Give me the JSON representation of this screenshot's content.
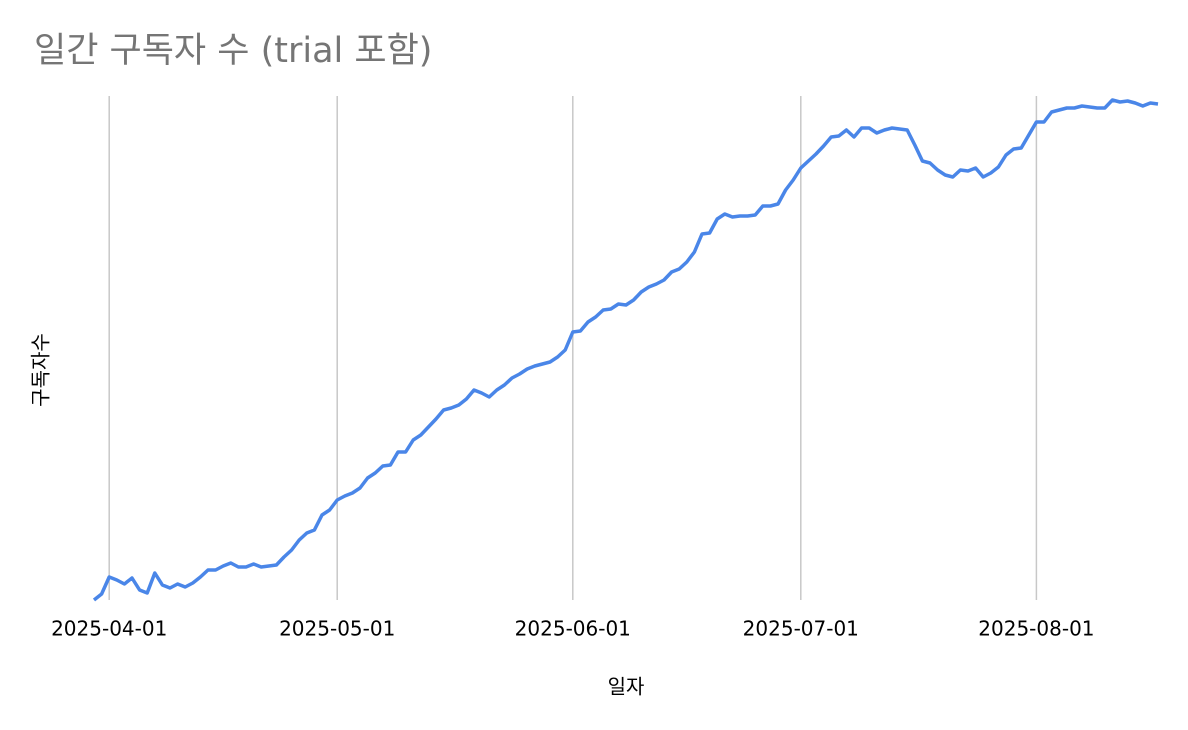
{
  "chart_data": {
    "type": "line",
    "title": "일간 구독자 수 (trial 포함)",
    "x_label": "일자",
    "y_label": "구독자수",
    "x": [
      "2025-03-30",
      "2025-03-31",
      "2025-04-01",
      "2025-04-02",
      "2025-04-03",
      "2025-04-04",
      "2025-04-05",
      "2025-04-06",
      "2025-04-07",
      "2025-04-08",
      "2025-04-09",
      "2025-04-10",
      "2025-04-11",
      "2025-04-12",
      "2025-04-13",
      "2025-04-14",
      "2025-04-15",
      "2025-04-16",
      "2025-04-17",
      "2025-04-18",
      "2025-04-19",
      "2025-04-20",
      "2025-04-21",
      "2025-04-22",
      "2025-04-23",
      "2025-04-24",
      "2025-04-25",
      "2025-04-26",
      "2025-04-27",
      "2025-04-28",
      "2025-04-29",
      "2025-04-30",
      "2025-05-01",
      "2025-05-02",
      "2025-05-03",
      "2025-05-04",
      "2025-05-05",
      "2025-05-06",
      "2025-05-07",
      "2025-05-08",
      "2025-05-09",
      "2025-05-10",
      "2025-05-11",
      "2025-05-12",
      "2025-05-13",
      "2025-05-14",
      "2025-05-15",
      "2025-05-16",
      "2025-05-17",
      "2025-05-18",
      "2025-05-19",
      "2025-05-20",
      "2025-05-21",
      "2025-05-22",
      "2025-05-23",
      "2025-05-24",
      "2025-05-25",
      "2025-05-26",
      "2025-05-27",
      "2025-05-28",
      "2025-05-29",
      "2025-05-30",
      "2025-05-31",
      "2025-06-01",
      "2025-06-02",
      "2025-06-03",
      "2025-06-04",
      "2025-06-05",
      "2025-06-06",
      "2025-06-07",
      "2025-06-08",
      "2025-06-09",
      "2025-06-10",
      "2025-06-11",
      "2025-06-12",
      "2025-06-13",
      "2025-06-14",
      "2025-06-15",
      "2025-06-16",
      "2025-06-17",
      "2025-06-18",
      "2025-06-19",
      "2025-06-20",
      "2025-06-21",
      "2025-06-22",
      "2025-06-23",
      "2025-06-24",
      "2025-06-25",
      "2025-06-26",
      "2025-06-27",
      "2025-06-28",
      "2025-06-29",
      "2025-06-30",
      "2025-07-01",
      "2025-07-02",
      "2025-07-03",
      "2025-07-04",
      "2025-07-05",
      "2025-07-06",
      "2025-07-07",
      "2025-07-08",
      "2025-07-09",
      "2025-07-10",
      "2025-07-11",
      "2025-07-12",
      "2025-07-13",
      "2025-07-14",
      "2025-07-15",
      "2025-07-16",
      "2025-07-17",
      "2025-07-18",
      "2025-07-19",
      "2025-07-20",
      "2025-07-21",
      "2025-07-22",
      "2025-07-23",
      "2025-07-24",
      "2025-07-25",
      "2025-07-26",
      "2025-07-27",
      "2025-07-28",
      "2025-07-29",
      "2025-07-30",
      "2025-07-31",
      "2025-08-01",
      "2025-08-02",
      "2025-08-03",
      "2025-08-04",
      "2025-08-05",
      "2025-08-06",
      "2025-08-07",
      "2025-08-08",
      "2025-08-09",
      "2025-08-10",
      "2025-08-11",
      "2025-08-12",
      "2025-08-13",
      "2025-08-14",
      "2025-08-15",
      "2025-08-16",
      "2025-08-17"
    ],
    "series": [
      {
        "color": "#4a86e8",
        "values": [
          0,
          1.2,
          4.6,
          4,
          3.2,
          4.4,
          2,
          1.4,
          5.4,
          3,
          2.4,
          3.2,
          2.6,
          3.4,
          4.6,
          6,
          6,
          6.8,
          7.4,
          6.6,
          6.6,
          7.2,
          6.6,
          6.8,
          7,
          8.6,
          10,
          12,
          13.4,
          14,
          17,
          18,
          20,
          20.8,
          21.4,
          22.4,
          24.4,
          25.4,
          26.8,
          27,
          29.6,
          29.6,
          32,
          33,
          34.6,
          36.2,
          38,
          38.4,
          39,
          40.2,
          42,
          41.4,
          40.6,
          42,
          43,
          44.4,
          45.2,
          46.2,
          46.8,
          47.2,
          47.6,
          48.6,
          50,
          53.6,
          53.8,
          55.6,
          56.6,
          58,
          58.2,
          59.2,
          59,
          60,
          61.6,
          62.6,
          63.2,
          64,
          65.6,
          66.2,
          67.6,
          69.6,
          73.2,
          73.4,
          76.2,
          77.2,
          76.6,
          76.8,
          76.8,
          77,
          78.8,
          78.8,
          79.2,
          82,
          84,
          86.4,
          87.8,
          89.2,
          90.8,
          92.6,
          92.8,
          94,
          92.6,
          94.4,
          94.4,
          93.4,
          94,
          94.4,
          94.2,
          94,
          91,
          87.8,
          87.4,
          86,
          85,
          84.6,
          86,
          85.8,
          86.4,
          84.6,
          85.4,
          86.6,
          89,
          90.2,
          90.4,
          93,
          95.6,
          95.6,
          97.6,
          98,
          98.4,
          98.4,
          98.8,
          98.6,
          98.4,
          98.4,
          100,
          99.6,
          99.8,
          99.4,
          98.8,
          99.4,
          99.2
        ]
      }
    ],
    "xlim": [
      "2025-03-30",
      "2025-08-17"
    ],
    "xticks": [
      "2025-04-01",
      "2025-05-01",
      "2025-06-01",
      "2025-07-01",
      "2025-08-01"
    ],
    "ylim": [
      0,
      100
    ],
    "grid": true
  }
}
